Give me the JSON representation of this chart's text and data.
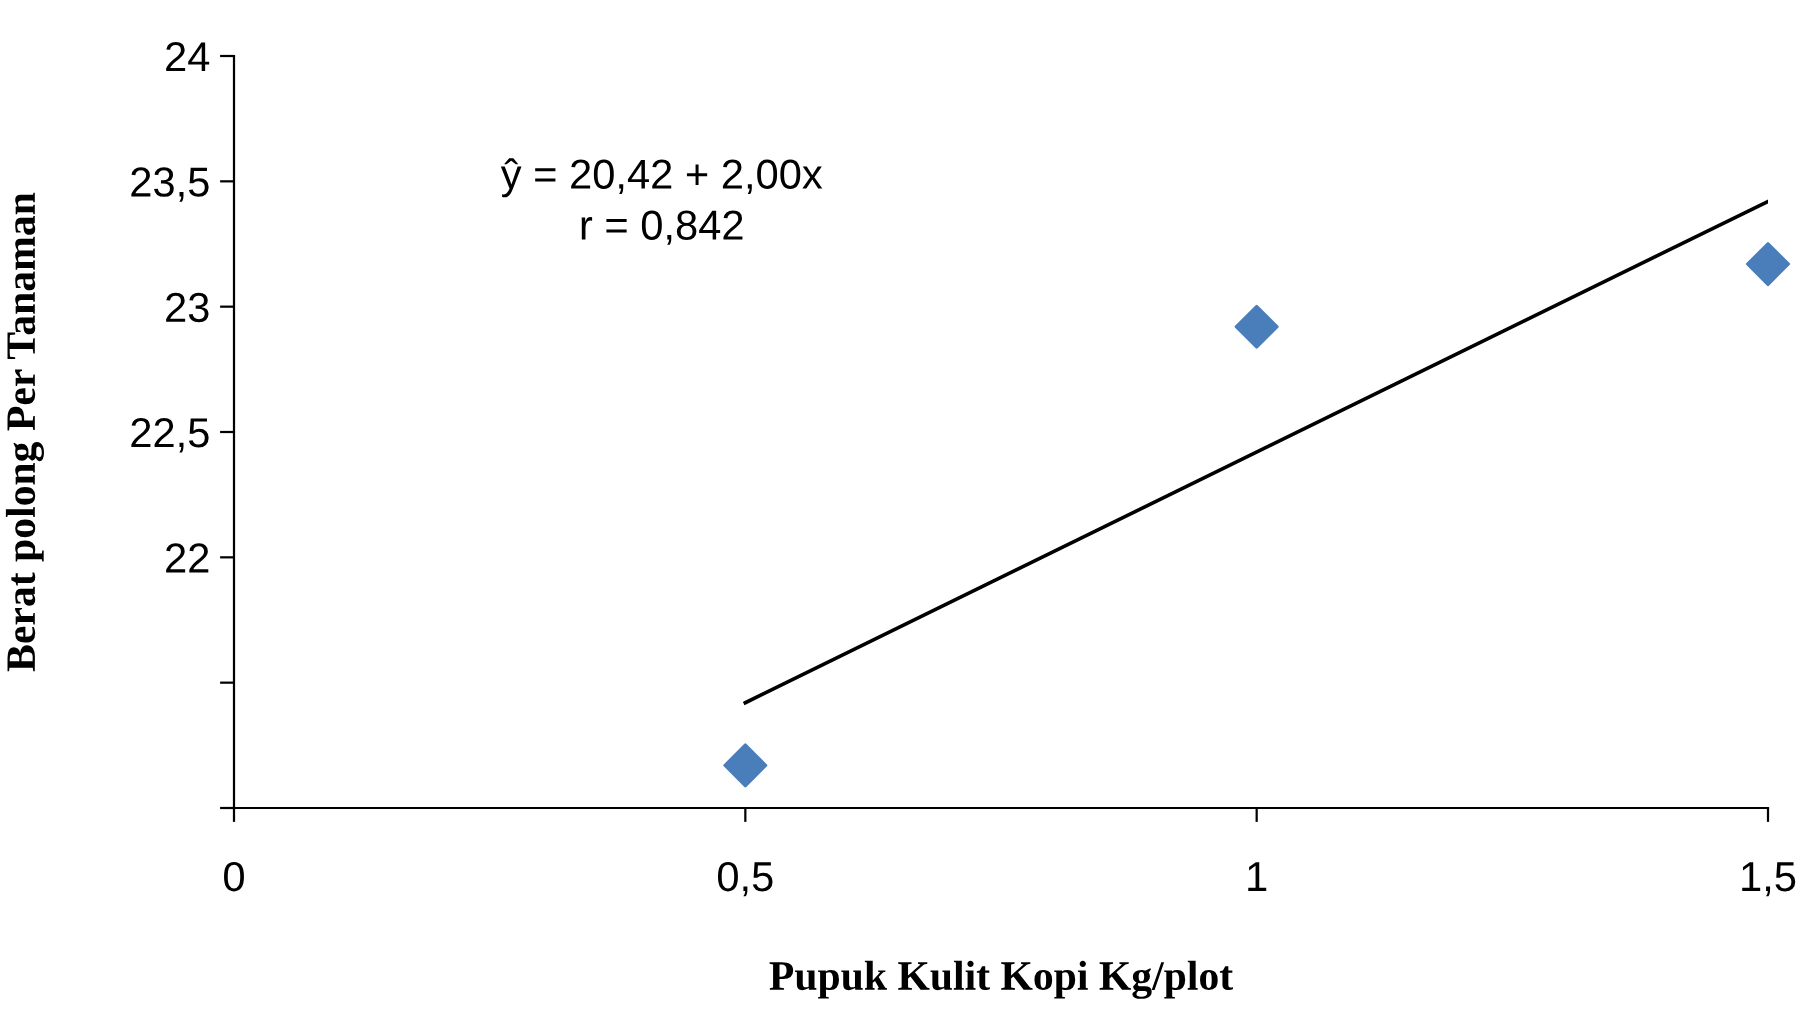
{
  "chart_data": {
    "type": "scatter",
    "xlabel": "Pupuk Kulit Kopi Kg/plot",
    "ylabel": "Berat polong Per Tanaman",
    "marker": "diamond",
    "grid": false,
    "legend": false,
    "series": [
      {
        "color": "#4a7ebb",
        "x": [
          0.5,
          1,
          1.5
        ],
        "values": [
          21.17,
          22.92,
          23.17
        ]
      },
      {
        "type": "line",
        "color": "#000000",
        "x": [
          0.5,
          1.5
        ],
        "values": [
          21.42,
          23.42
        ],
        "marker": "none",
        "line_style": "solid"
      }
    ],
    "xlim": [
      0,
      1.5
    ],
    "xticks": [
      0,
      {
        "value": 0.5,
        "label": "0,5"
      },
      1,
      {
        "value": 1.5,
        "label": "1,5"
      }
    ],
    "ylim": [
      21,
      24
    ],
    "yticks": [
      {
        "value": 21,
        "label": null
      },
      {
        "value": 21.5,
        "label": null
      },
      22,
      {
        "value": 22.5,
        "label": "22,5"
      },
      23,
      {
        "value": 23.5,
        "label": "23,5"
      },
      24
    ],
    "annotations": [
      "ŷ = 20,42 + 2,00x\nr = 0,842"
    ]
  }
}
